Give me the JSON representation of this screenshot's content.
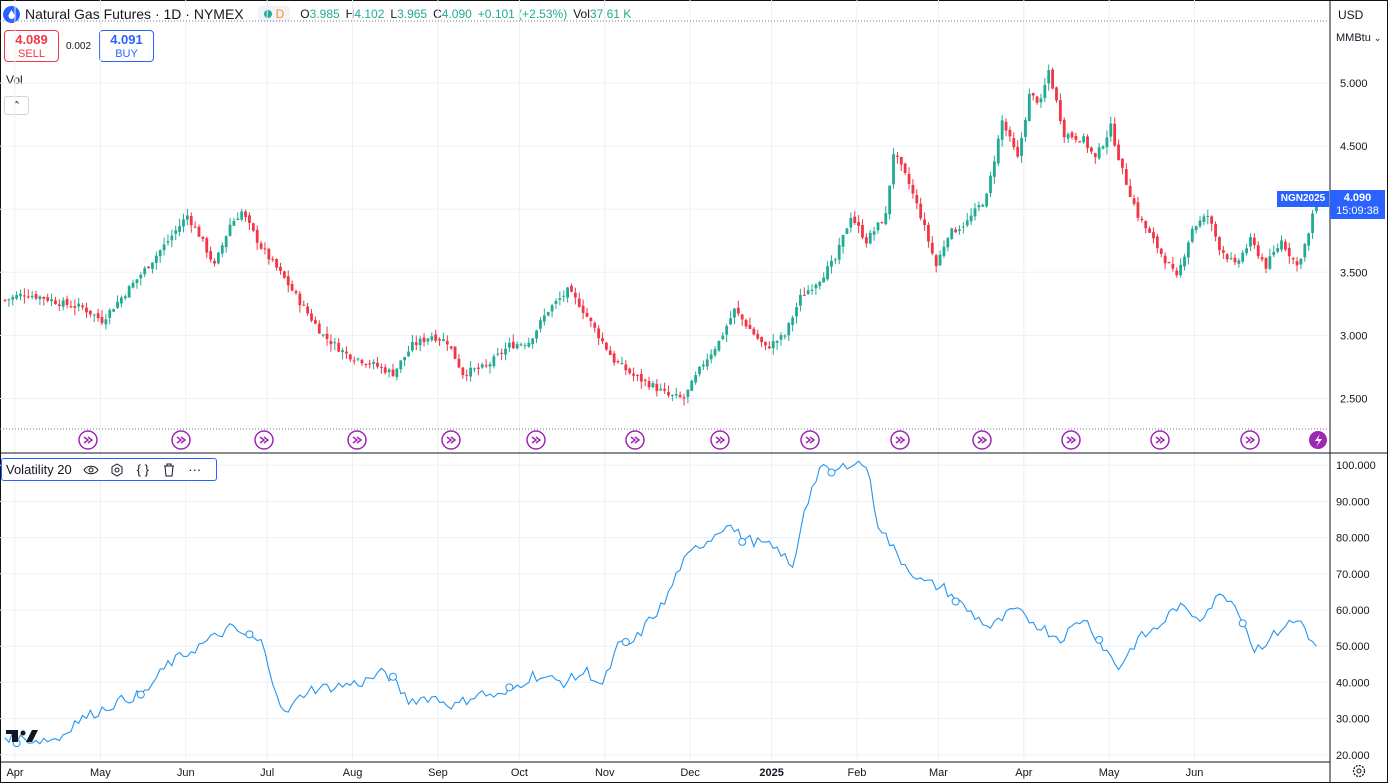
{
  "header": {
    "title": "Natural Gas Futures · 1D · NYMEX",
    "session": "D",
    "open_label": "O",
    "open": "3.985",
    "high_label": "H",
    "high": "4.102",
    "low_label": "L",
    "low": "3.965",
    "close_label": "C",
    "close": "4.090",
    "change": "+0.101 (+2.53%)",
    "vol_label": "Vol",
    "vol": "37.61 K",
    "colors": {
      "up": "#22ab94",
      "down": "#f23645",
      "accent": "#2962ff"
    }
  },
  "trade": {
    "sell_price": "4.089",
    "sell_label": "SELL",
    "spread": "0.002",
    "buy_price": "4.091",
    "buy_label": "BUY"
  },
  "volume_pane_label": "Vol",
  "indicator": {
    "name": "Volatility 20",
    "icons": [
      "eye-icon",
      "settings-icon",
      "braces-icon",
      "trash-icon",
      "more-icon"
    ]
  },
  "axis": {
    "currency": "USD",
    "unit": "MMBtu",
    "symbol_tag": "NGN2025",
    "last_price": "4.090",
    "countdown": "15:09:38"
  },
  "chart_data": [
    {
      "type": "candlestick",
      "title": "Natural Gas Futures · 1D · NYMEX",
      "ylim": [
        2.25,
        5.5
      ],
      "y_ticks": [
        "5.000",
        "4.500",
        "4.000",
        "3.500",
        "3.000",
        "2.500"
      ],
      "x_ticks": [
        "Apr",
        "May",
        "Jun",
        "Jul",
        "Aug",
        "Sep",
        "Oct",
        "Nov",
        "Dec",
        "2025",
        "Feb",
        "Mar",
        "Apr",
        "May",
        "Jun"
      ],
      "close_anchors": [
        [
          0,
          3.28
        ],
        [
          5,
          3.33
        ],
        [
          10,
          3.3
        ],
        [
          15,
          3.25
        ],
        [
          20,
          3.22
        ],
        [
          25,
          3.12
        ],
        [
          30,
          3.3
        ],
        [
          36,
          3.52
        ],
        [
          42,
          3.75
        ],
        [
          47,
          3.95
        ],
        [
          50,
          3.8
        ],
        [
          54,
          3.55
        ],
        [
          58,
          3.88
        ],
        [
          61,
          3.98
        ],
        [
          66,
          3.7
        ],
        [
          72,
          3.45
        ],
        [
          77,
          3.22
        ],
        [
          82,
          3.0
        ],
        [
          88,
          2.85
        ],
        [
          94,
          2.78
        ],
        [
          100,
          2.7
        ],
        [
          105,
          2.92
        ],
        [
          110,
          3.0
        ],
        [
          114,
          2.95
        ],
        [
          118,
          2.7
        ],
        [
          124,
          2.75
        ],
        [
          130,
          2.92
        ],
        [
          135,
          2.95
        ],
        [
          140,
          3.2
        ],
        [
          145,
          3.35
        ],
        [
          148,
          3.25
        ],
        [
          152,
          3.05
        ],
        [
          157,
          2.8
        ],
        [
          162,
          2.68
        ],
        [
          167,
          2.6
        ],
        [
          171,
          2.52
        ],
        [
          175,
          2.5
        ],
        [
          180,
          2.78
        ],
        [
          184,
          2.95
        ],
        [
          188,
          3.2
        ],
        [
          192,
          3.05
        ],
        [
          196,
          2.9
        ],
        [
          201,
          3.0
        ],
        [
          205,
          3.3
        ],
        [
          210,
          3.45
        ],
        [
          214,
          3.6
        ],
        [
          218,
          3.95
        ],
        [
          222,
          3.75
        ],
        [
          227,
          3.95
        ],
        [
          229,
          4.45
        ],
        [
          233,
          4.2
        ],
        [
          236,
          3.95
        ],
        [
          240,
          3.55
        ],
        [
          243,
          3.8
        ],
        [
          248,
          3.9
        ],
        [
          253,
          4.1
        ],
        [
          257,
          4.7
        ],
        [
          261,
          4.4
        ],
        [
          264,
          4.9
        ],
        [
          267,
          4.85
        ],
        [
          269,
          5.1
        ],
        [
          273,
          4.6
        ],
        [
          278,
          4.55
        ],
        [
          281,
          4.4
        ],
        [
          285,
          4.65
        ],
        [
          288,
          4.3
        ],
        [
          292,
          3.95
        ],
        [
          296,
          3.75
        ],
        [
          299,
          3.6
        ],
        [
          302,
          3.45
        ],
        [
          306,
          3.85
        ],
        [
          310,
          3.95
        ],
        [
          313,
          3.7
        ],
        [
          317,
          3.55
        ],
        [
          321,
          3.75
        ],
        [
          325,
          3.55
        ],
        [
          329,
          3.75
        ],
        [
          333,
          3.55
        ],
        [
          336,
          3.8
        ],
        [
          338,
          4.09
        ]
      ],
      "last": {
        "open": 3.985,
        "high": 4.102,
        "low": 3.965,
        "close": 4.09
      }
    },
    {
      "type": "line",
      "title": "Volatility 20",
      "ylim": [
        18,
        102
      ],
      "y_ticks": [
        "100.000",
        "90.000",
        "80.000",
        "70.000",
        "60.000",
        "50.000",
        "40.000",
        "30.000",
        "20.000"
      ],
      "anchors": [
        [
          0,
          25
        ],
        [
          8,
          24
        ],
        [
          14,
          24.5
        ],
        [
          18,
          29
        ],
        [
          24,
          32
        ],
        [
          30,
          35
        ],
        [
          36,
          37
        ],
        [
          42,
          45
        ],
        [
          50,
          50
        ],
        [
          58,
          55
        ],
        [
          62,
          53
        ],
        [
          66,
          51
        ],
        [
          72,
          31
        ],
        [
          78,
          38
        ],
        [
          86,
          39
        ],
        [
          92,
          40
        ],
        [
          98,
          43
        ],
        [
          104,
          35
        ],
        [
          110,
          36
        ],
        [
          116,
          33.5
        ],
        [
          122,
          37
        ],
        [
          128,
          36
        ],
        [
          136,
          42
        ],
        [
          144,
          40
        ],
        [
          150,
          43
        ],
        [
          154,
          39
        ],
        [
          158,
          50
        ],
        [
          162,
          51
        ],
        [
          166,
          57
        ],
        [
          170,
          62
        ],
        [
          174,
          72
        ],
        [
          178,
          77
        ],
        [
          182,
          80
        ],
        [
          186,
          84
        ],
        [
          190,
          80
        ],
        [
          196,
          78
        ],
        [
          200,
          76
        ],
        [
          203,
          71
        ],
        [
          206,
          88
        ],
        [
          210,
          99
        ],
        [
          214,
          98
        ],
        [
          218,
          101
        ],
        [
          222,
          100
        ],
        [
          225,
          84
        ],
        [
          230,
          75
        ],
        [
          236,
          68
        ],
        [
          242,
          66
        ],
        [
          248,
          60
        ],
        [
          254,
          55
        ],
        [
          260,
          60
        ],
        [
          266,
          56
        ],
        [
          272,
          52
        ],
        [
          278,
          58
        ],
        [
          283,
          50
        ],
        [
          287,
          44
        ],
        [
          292,
          52
        ],
        [
          297,
          55
        ],
        [
          302,
          61
        ],
        [
          308,
          58
        ],
        [
          314,
          65
        ],
        [
          318,
          60
        ],
        [
          322,
          49
        ],
        [
          326,
          52
        ],
        [
          330,
          56
        ],
        [
          334,
          57
        ],
        [
          338,
          49
        ]
      ],
      "markers_at": [
        3,
        35,
        63,
        100,
        130,
        160,
        190,
        213,
        245,
        282,
        319
      ]
    }
  ]
}
